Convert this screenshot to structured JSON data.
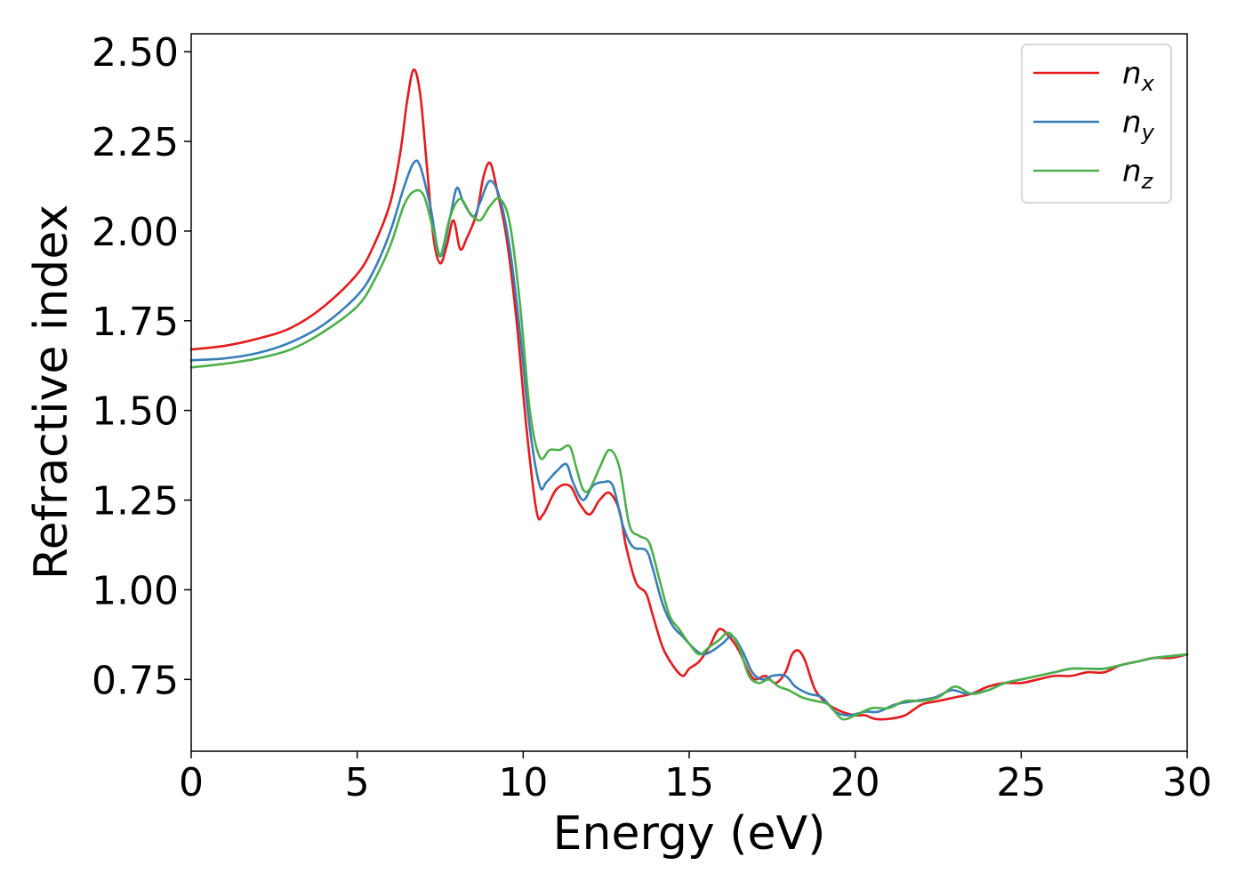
{
  "chart_data": {
    "type": "line",
    "title": "",
    "xlabel": "Energy (eV)",
    "ylabel": "Refractive index",
    "xlim": [
      0,
      30
    ],
    "ylim": [
      0.55,
      2.55
    ],
    "xticks": [
      0,
      5,
      10,
      15,
      20,
      25,
      30
    ],
    "xtick_labels": [
      "0",
      "5",
      "10",
      "15",
      "20",
      "25",
      "30"
    ],
    "yticks": [
      0.75,
      1.0,
      1.25,
      1.5,
      1.75,
      2.0,
      2.25,
      2.5
    ],
    "ytick_labels": [
      "0.75",
      "1.00",
      "1.25",
      "1.50",
      "1.75",
      "2.00",
      "2.25",
      "2.50"
    ],
    "grid": false,
    "legend_position": "top-right",
    "series": [
      {
        "name": "n_x",
        "label_main": "n",
        "label_sub": "x",
        "color": "#e41a1c",
        "points": [
          [
            0,
            1.67
          ],
          [
            1,
            1.68
          ],
          [
            2,
            1.7
          ],
          [
            3,
            1.73
          ],
          [
            4,
            1.79
          ],
          [
            5,
            1.88
          ],
          [
            5.5,
            1.96
          ],
          [
            6,
            2.08
          ],
          [
            6.3,
            2.22
          ],
          [
            6.5,
            2.36
          ],
          [
            6.7,
            2.45
          ],
          [
            6.9,
            2.38
          ],
          [
            7.1,
            2.18
          ],
          [
            7.3,
            1.98
          ],
          [
            7.5,
            1.91
          ],
          [
            7.7,
            1.96
          ],
          [
            7.9,
            2.03
          ],
          [
            8.1,
            1.95
          ],
          [
            8.3,
            1.98
          ],
          [
            8.6,
            2.05
          ],
          [
            8.8,
            2.15
          ],
          [
            9.0,
            2.19
          ],
          [
            9.2,
            2.12
          ],
          [
            9.5,
            1.98
          ],
          [
            9.8,
            1.75
          ],
          [
            10.1,
            1.45
          ],
          [
            10.4,
            1.22
          ],
          [
            10.6,
            1.21
          ],
          [
            11.0,
            1.28
          ],
          [
            11.4,
            1.29
          ],
          [
            11.7,
            1.24
          ],
          [
            12.0,
            1.21
          ],
          [
            12.3,
            1.25
          ],
          [
            12.6,
            1.27
          ],
          [
            12.9,
            1.22
          ],
          [
            13.1,
            1.12
          ],
          [
            13.4,
            1.02
          ],
          [
            13.7,
            0.99
          ],
          [
            13.9,
            0.93
          ],
          [
            14.2,
            0.84
          ],
          [
            14.5,
            0.79
          ],
          [
            14.8,
            0.76
          ],
          [
            15.0,
            0.78
          ],
          [
            15.3,
            0.8
          ],
          [
            15.6,
            0.84
          ],
          [
            15.9,
            0.89
          ],
          [
            16.2,
            0.87
          ],
          [
            16.5,
            0.83
          ],
          [
            16.8,
            0.77
          ],
          [
            17.0,
            0.75
          ],
          [
            17.3,
            0.76
          ],
          [
            17.6,
            0.74
          ],
          [
            17.9,
            0.77
          ],
          [
            18.1,
            0.82
          ],
          [
            18.3,
            0.83
          ],
          [
            18.5,
            0.8
          ],
          [
            18.8,
            0.72
          ],
          [
            19.2,
            0.68
          ],
          [
            19.6,
            0.66
          ],
          [
            20.0,
            0.65
          ],
          [
            20.3,
            0.65
          ],
          [
            20.6,
            0.64
          ],
          [
            21.0,
            0.64
          ],
          [
            21.5,
            0.65
          ],
          [
            22.0,
            0.68
          ],
          [
            22.5,
            0.69
          ],
          [
            23.0,
            0.7
          ],
          [
            23.5,
            0.71
          ],
          [
            24.0,
            0.73
          ],
          [
            24.5,
            0.74
          ],
          [
            25.0,
            0.74
          ],
          [
            25.5,
            0.75
          ],
          [
            26.0,
            0.76
          ],
          [
            26.5,
            0.76
          ],
          [
            27.0,
            0.77
          ],
          [
            27.5,
            0.77
          ],
          [
            28.0,
            0.79
          ],
          [
            28.5,
            0.8
          ],
          [
            29.0,
            0.81
          ],
          [
            29.5,
            0.81
          ],
          [
            30,
            0.82
          ]
        ]
      },
      {
        "name": "n_y",
        "label_main": "n",
        "label_sub": "y",
        "color": "#377eb8",
        "points": [
          [
            0,
            1.64
          ],
          [
            1,
            1.645
          ],
          [
            2,
            1.66
          ],
          [
            3,
            1.69
          ],
          [
            4,
            1.74
          ],
          [
            5,
            1.82
          ],
          [
            5.5,
            1.89
          ],
          [
            6,
            2.0
          ],
          [
            6.4,
            2.12
          ],
          [
            6.7,
            2.19
          ],
          [
            6.9,
            2.18
          ],
          [
            7.2,
            2.07
          ],
          [
            7.5,
            1.93
          ],
          [
            7.8,
            2.04
          ],
          [
            8.0,
            2.12
          ],
          [
            8.2,
            2.08
          ],
          [
            8.5,
            2.04
          ],
          [
            8.7,
            2.08
          ],
          [
            9.0,
            2.14
          ],
          [
            9.3,
            2.09
          ],
          [
            9.6,
            1.95
          ],
          [
            9.9,
            1.72
          ],
          [
            10.2,
            1.45
          ],
          [
            10.5,
            1.29
          ],
          [
            10.7,
            1.3
          ],
          [
            11.0,
            1.33
          ],
          [
            11.3,
            1.35
          ],
          [
            11.5,
            1.3
          ],
          [
            11.8,
            1.25
          ],
          [
            12.1,
            1.29
          ],
          [
            12.4,
            1.3
          ],
          [
            12.7,
            1.29
          ],
          [
            13.0,
            1.18
          ],
          [
            13.3,
            1.12
          ],
          [
            13.7,
            1.11
          ],
          [
            13.9,
            1.06
          ],
          [
            14.2,
            0.96
          ],
          [
            14.5,
            0.9
          ],
          [
            14.8,
            0.87
          ],
          [
            15.1,
            0.84
          ],
          [
            15.4,
            0.82
          ],
          [
            15.7,
            0.83
          ],
          [
            16.0,
            0.85
          ],
          [
            16.3,
            0.87
          ],
          [
            16.6,
            0.83
          ],
          [
            16.9,
            0.77
          ],
          [
            17.2,
            0.75
          ],
          [
            17.5,
            0.76
          ],
          [
            17.9,
            0.76
          ],
          [
            18.2,
            0.73
          ],
          [
            18.6,
            0.71
          ],
          [
            19.0,
            0.7
          ],
          [
            19.4,
            0.66
          ],
          [
            19.8,
            0.65
          ],
          [
            20.3,
            0.66
          ],
          [
            20.7,
            0.66
          ],
          [
            21.2,
            0.68
          ],
          [
            21.8,
            0.69
          ],
          [
            22.4,
            0.7
          ],
          [
            22.9,
            0.72
          ],
          [
            23.4,
            0.71
          ],
          [
            24.0,
            0.72
          ],
          [
            24.5,
            0.74
          ],
          [
            25.0,
            0.75
          ],
          [
            25.5,
            0.76
          ],
          [
            26.0,
            0.77
          ],
          [
            26.5,
            0.78
          ],
          [
            27.0,
            0.78
          ],
          [
            27.5,
            0.78
          ],
          [
            28.0,
            0.79
          ],
          [
            28.5,
            0.8
          ],
          [
            29.0,
            0.81
          ],
          [
            29.5,
            0.815
          ],
          [
            30,
            0.82
          ]
        ]
      },
      {
        "name": "n_z",
        "label_main": "n",
        "label_sub": "z",
        "color": "#4daf4a",
        "points": [
          [
            0,
            1.62
          ],
          [
            1,
            1.63
          ],
          [
            2,
            1.645
          ],
          [
            3,
            1.67
          ],
          [
            4,
            1.72
          ],
          [
            5,
            1.79
          ],
          [
            5.5,
            1.86
          ],
          [
            6,
            1.96
          ],
          [
            6.4,
            2.07
          ],
          [
            6.7,
            2.11
          ],
          [
            7.0,
            2.1
          ],
          [
            7.3,
            2.0
          ],
          [
            7.5,
            1.93
          ],
          [
            7.8,
            2.04
          ],
          [
            8.1,
            2.09
          ],
          [
            8.4,
            2.05
          ],
          [
            8.7,
            2.03
          ],
          [
            9.0,
            2.07
          ],
          [
            9.3,
            2.09
          ],
          [
            9.6,
            2.02
          ],
          [
            9.9,
            1.8
          ],
          [
            10.2,
            1.5
          ],
          [
            10.5,
            1.37
          ],
          [
            10.8,
            1.39
          ],
          [
            11.1,
            1.39
          ],
          [
            11.4,
            1.4
          ],
          [
            11.6,
            1.34
          ],
          [
            11.8,
            1.28
          ],
          [
            12.0,
            1.28
          ],
          [
            12.3,
            1.34
          ],
          [
            12.6,
            1.39
          ],
          [
            12.9,
            1.34
          ],
          [
            13.2,
            1.18
          ],
          [
            13.5,
            1.15
          ],
          [
            13.8,
            1.13
          ],
          [
            14.1,
            1.03
          ],
          [
            14.4,
            0.93
          ],
          [
            14.7,
            0.89
          ],
          [
            15.0,
            0.85
          ],
          [
            15.3,
            0.82
          ],
          [
            15.6,
            0.84
          ],
          [
            15.9,
            0.86
          ],
          [
            16.2,
            0.88
          ],
          [
            16.5,
            0.84
          ],
          [
            16.8,
            0.76
          ],
          [
            17.1,
            0.74
          ],
          [
            17.4,
            0.75
          ],
          [
            17.7,
            0.73
          ],
          [
            18.0,
            0.72
          ],
          [
            18.4,
            0.7
          ],
          [
            18.8,
            0.69
          ],
          [
            19.2,
            0.68
          ],
          [
            19.6,
            0.64
          ],
          [
            20.0,
            0.65
          ],
          [
            20.5,
            0.67
          ],
          [
            21.0,
            0.67
          ],
          [
            21.5,
            0.69
          ],
          [
            22.0,
            0.69
          ],
          [
            22.5,
            0.7
          ],
          [
            23.0,
            0.73
          ],
          [
            23.5,
            0.71
          ],
          [
            24.0,
            0.72
          ],
          [
            24.5,
            0.74
          ],
          [
            25.0,
            0.75
          ],
          [
            25.5,
            0.76
          ],
          [
            26.0,
            0.77
          ],
          [
            26.5,
            0.78
          ],
          [
            27.0,
            0.78
          ],
          [
            27.5,
            0.78
          ],
          [
            28.0,
            0.79
          ],
          [
            28.5,
            0.8
          ],
          [
            29.0,
            0.81
          ],
          [
            29.5,
            0.815
          ],
          [
            30,
            0.82
          ]
        ]
      }
    ]
  }
}
